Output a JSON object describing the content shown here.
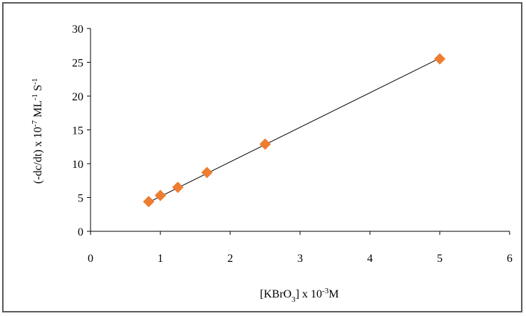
{
  "chart_data": {
    "type": "scatter",
    "title": "",
    "xlabel": {
      "base": "[KBrO",
      "sub": "3",
      "mid": "] x 10",
      "sup": "-3",
      "end": "M"
    },
    "ylabel": {
      "p1": "(-dc/dt) x 10",
      "sup1": "-7",
      "p2": " ML",
      "sup2": "-1",
      "p3": " S",
      "sup3": "-1"
    },
    "xlim": [
      0,
      6
    ],
    "ylim": [
      0,
      30
    ],
    "xticks": [
      0,
      1,
      2,
      3,
      4,
      5,
      6
    ],
    "yticks": [
      0,
      5,
      10,
      15,
      20,
      25,
      30
    ],
    "grid": false,
    "legend": "none",
    "series": [
      {
        "marker": "diamond",
        "color": "#ED7D31",
        "x": [
          0.833,
          1.0,
          1.25,
          1.667,
          2.5,
          5.0
        ],
        "y": [
          4.4,
          5.3,
          6.5,
          8.7,
          12.9,
          25.5
        ]
      }
    ],
    "trendline": {
      "type": "linear",
      "color": "#000000",
      "x": [
        0.833,
        5.0
      ],
      "y": [
        4.3,
        25.6
      ]
    }
  }
}
